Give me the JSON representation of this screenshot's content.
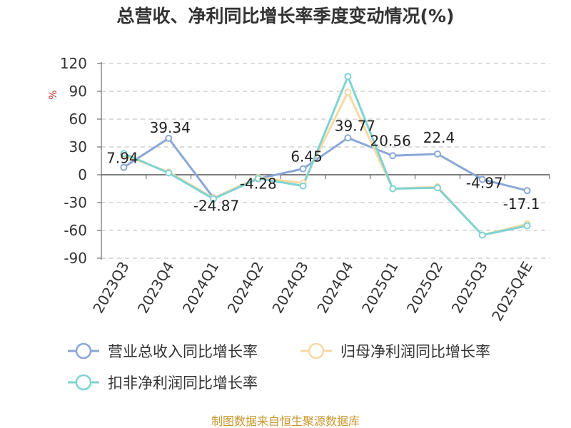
{
  "chart_data": {
    "type": "line",
    "title": "总营收、净利同比增长率季度变动情况(%)",
    "ylabel": "%",
    "categories": [
      "2023Q3",
      "2023Q4",
      "2024Q1",
      "2024Q2",
      "2024Q3",
      "2024Q4",
      "2025Q1",
      "2025Q2",
      "2025Q3",
      "2025Q4E"
    ],
    "y_ticks": [
      120,
      90,
      60,
      30,
      0,
      -30,
      -60,
      -90
    ],
    "ylim": [
      -90,
      120
    ],
    "grid": true,
    "legend_position": "bottom",
    "series": [
      {
        "name": "营业总收入同比增长率",
        "color": "#8aa7d6",
        "values": [
          7.94,
          39.34,
          -24.87,
          -4.28,
          6.45,
          39.77,
          20.56,
          22.4,
          -4.97,
          -17.1
        ],
        "labels": [
          "7.94",
          "39.34",
          "-24.87",
          "-4.28",
          "6.45",
          "39.77",
          "20.56",
          "22.4",
          "-4.97",
          "-17.1"
        ]
      },
      {
        "name": "归母净利润同比增长率",
        "color": "#f7d9a3",
        "values": [
          21,
          3,
          -25,
          -3,
          -9,
          89,
          -15,
          -13,
          -65,
          -53
        ]
      },
      {
        "name": "扣非净利润同比增长率",
        "color": "#7fd3d3",
        "values": [
          23,
          2,
          -26,
          -4,
          -12,
          106,
          -15,
          -14,
          -65,
          -55
        ]
      }
    ]
  },
  "footer": {
    "source": "制图数据来自恒生聚源数据库",
    "source_color": "#c9962e"
  },
  "unit_color": "#cc2222"
}
